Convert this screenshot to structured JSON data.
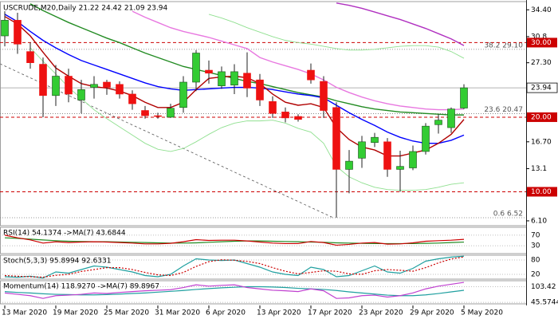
{
  "chart_data": [
    {
      "type": "candlestick",
      "title": "USCRUDE,M20,Daily  21.22 24.42 21.09 23.94",
      "x": [
        "13 Mar 2020",
        null,
        null,
        null,
        "19 Mar 2020",
        null,
        null,
        null,
        "25 Mar 2020",
        null,
        null,
        null,
        "31 Mar 2020",
        null,
        null,
        null,
        "6 Apr 2020",
        null,
        null,
        null,
        "13 Apr 2020",
        null,
        null,
        null,
        "17 Apr 2020",
        null,
        null,
        null,
        "23 Apr 2020",
        null,
        null,
        null,
        "29 Apr 2020",
        null,
        null,
        null,
        "5 May 2020"
      ],
      "open": [
        30.9,
        33.0,
        28.8,
        27.1,
        22.9,
        25.5,
        22.3,
        24.0,
        24.7,
        24.4,
        23.1,
        20.9,
        20.2,
        20.0,
        21.3,
        24.7,
        26.3,
        24.2,
        24.3,
        25.9,
        25.0,
        22.1,
        20.7,
        20.1,
        26.3,
        24.8,
        21.3,
        13.0,
        14.5,
        16.6,
        16.7,
        13.0,
        13.2,
        15.4,
        19.0,
        18.6,
        21.22
      ],
      "high": [
        34.2,
        34.0,
        30.0,
        28.0,
        27.0,
        26.5,
        25.0,
        25.5,
        25.0,
        24.8,
        23.6,
        21.5,
        20.6,
        21.8,
        25.5,
        29.0,
        27.6,
        26.8,
        27.1,
        28.7,
        25.8,
        22.8,
        21.3,
        20.4,
        27.2,
        25.5,
        22.0,
        15.6,
        17.5,
        17.9,
        17.2,
        15.5,
        16.2,
        19.2,
        20.4,
        21.3,
        24.42
      ],
      "low": [
        29.5,
        28.5,
        26.5,
        20.0,
        21.5,
        22.0,
        20.5,
        22.5,
        23.0,
        22.5,
        21.0,
        19.8,
        19.8,
        19.9,
        20.6,
        23.5,
        24.5,
        23.8,
        23.1,
        22.7,
        21.5,
        19.9,
        19.3,
        19.4,
        24.5,
        19.9,
        6.52,
        9.8,
        13.2,
        16.0,
        12.0,
        10.0,
        12.9,
        15.0,
        17.8,
        17.9,
        21.09
      ],
      "close": [
        33.0,
        29.8,
        27.3,
        22.9,
        25.5,
        23.1,
        23.7,
        24.4,
        24.0,
        23.1,
        21.8,
        20.2,
        20.1,
        21.2,
        24.7,
        28.6,
        25.9,
        26.1,
        26.1,
        23.9,
        22.3,
        20.5,
        19.9,
        19.7,
        25.0,
        20.9,
        13.0,
        14.1,
        16.7,
        17.3,
        13.0,
        13.4,
        15.4,
        18.8,
        19.6,
        21.1,
        23.94
      ],
      "up_color": "#33cc33",
      "down_color": "#ee1111",
      "ylim": [
        5.45,
        35.5
      ],
      "yticks": [
        {
          "value": 34.4,
          "label": "34.40"
        },
        30.8,
        {
          "value": 27.3,
          "label": "27.30"
        },
        {
          "value": 16.7,
          "label": "16.70"
        },
        13.1,
        {
          "value": 6.1,
          "label": "6.10"
        }
      ],
      "overlays": [
        {
          "color": "#90e090",
          "values": [
            null,
            null,
            null,
            null,
            null,
            null,
            null,
            null,
            null,
            null,
            null,
            null,
            null,
            null,
            null,
            null,
            33.8,
            33.3,
            32.7,
            32.0,
            31.4,
            30.8,
            30.3,
            30.0,
            29.8,
            29.5,
            29.2,
            29.0,
            29.0,
            29.1,
            29.3,
            29.5,
            29.6,
            29.6,
            29.4,
            28.8,
            27.9
          ]
        },
        {
          "color": "#90e090",
          "values": [
            null,
            null,
            29.3,
            27.5,
            25.8,
            24.0,
            22.5,
            21.0,
            19.8,
            18.7,
            17.6,
            16.5,
            15.7,
            15.4,
            15.8,
            16.7,
            17.7,
            18.6,
            19.2,
            19.5,
            19.5,
            19.6,
            19.2,
            18.5,
            18.0,
            16.5,
            13.4,
            12.0,
            11.2,
            10.6,
            10.3,
            10.2,
            10.2,
            10.3,
            10.6,
            11.0,
            11.2
          ]
        },
        {
          "color": "#b030c0",
          "values": [
            null,
            null,
            null,
            null,
            null,
            null,
            null,
            null,
            null,
            null,
            null,
            null,
            null,
            null,
            null,
            null,
            null,
            null,
            null,
            null,
            null,
            null,
            null,
            null,
            null,
            null,
            35.3,
            35.0,
            34.6,
            34.1,
            33.6,
            33.1,
            32.5,
            31.9,
            31.2,
            30.5,
            29.6
          ]
        },
        {
          "color": "#e878e0",
          "values": [
            null,
            null,
            null,
            null,
            null,
            null,
            null,
            null,
            null,
            null,
            34.2,
            33.4,
            32.7,
            32.0,
            31.5,
            31.1,
            30.7,
            30.2,
            29.7,
            29.2,
            28.0,
            27.4,
            26.9,
            26.4,
            25.8,
            25.0,
            24.0,
            23.3,
            22.7,
            22.2,
            21.8,
            21.5,
            21.3,
            21.1,
            21.0,
            21.0,
            21.1
          ]
        },
        {
          "color": "#228b22",
          "values": [
            null,
            null,
            35.2,
            34.3,
            33.5,
            32.7,
            32.0,
            31.3,
            30.6,
            30.0,
            29.3,
            28.6,
            28.0,
            27.4,
            26.8,
            26.4,
            26.0,
            25.6,
            25.2,
            24.8,
            24.5,
            24.1,
            23.7,
            23.3,
            23.0,
            22.7,
            22.2,
            21.8,
            21.4,
            21.1,
            20.9,
            20.7,
            20.6,
            20.5,
            20.4,
            20.3,
            20.3
          ]
        },
        {
          "color": "#0000ff",
          "values": [
            33.8,
            32.8,
            31.5,
            30.3,
            29.3,
            28.4,
            27.6,
            27.0,
            26.4,
            25.8,
            25.2,
            24.6,
            24.1,
            23.8,
            23.6,
            23.7,
            23.8,
            23.9,
            24.0,
            24.0,
            23.9,
            23.7,
            23.4,
            23.1,
            22.9,
            22.6,
            21.6,
            20.6,
            19.7,
            18.9,
            18.0,
            17.3,
            16.8,
            16.5,
            16.5,
            16.9,
            17.6
          ]
        },
        {
          "color": "#b00000",
          "values": [
            33.5,
            32.5,
            30.9,
            28.7,
            26.6,
            25.5,
            24.5,
            24.1,
            23.9,
            23.5,
            22.9,
            22.0,
            21.3,
            21.3,
            22.0,
            23.7,
            25.2,
            25.4,
            25.5,
            25.3,
            24.5,
            23.1,
            22.0,
            21.6,
            21.8,
            21.3,
            18.6,
            17.0,
            16.0,
            15.6,
            14.8,
            14.8,
            15.2,
            15.6,
            16.5,
            17.7,
            19.7
          ]
        }
      ],
      "levels": [
        {
          "value": 30,
          "label": "30.00"
        },
        {
          "value": 20,
          "label": "20.00"
        },
        {
          "value": 10,
          "label": "10.00"
        }
      ],
      "level_color": "#cc0000",
      "fib_levels": [
        {
          "value": 29.1,
          "label": "38.2 29.10"
        },
        {
          "value": 20.47,
          "label": "23.6 20.47"
        },
        {
          "value": 6.52,
          "label": "0.6 6.52"
        }
      ],
      "last_price": 23.94
    },
    {
      "type": "line",
      "title": "RSI(14) 54.1374 ->MA(7) 43.6844",
      "ylim": [
        0,
        100
      ],
      "yticks": [
        30,
        70
      ],
      "series": [
        {
          "color": "#228b22",
          "values": [
            60,
            58,
            55,
            52,
            49,
            47,
            46,
            45,
            45,
            44,
            43,
            42,
            41,
            40,
            40,
            41,
            43,
            45,
            47,
            48,
            48,
            47,
            46,
            45,
            44,
            43,
            41,
            40,
            39,
            38,
            38,
            38,
            38,
            39,
            40,
            42,
            43.6844
          ]
        },
        {
          "color": "#cc0000",
          "values": [
            70,
            60,
            52,
            40,
            45,
            42,
            44,
            45,
            44,
            42,
            40,
            37,
            37,
            39,
            45,
            53,
            50,
            51,
            51,
            48,
            44,
            40,
            38,
            38,
            46,
            42,
            32,
            35,
            40,
            42,
            36,
            37,
            41,
            47,
            49,
            51,
            54.1374
          ]
        }
      ]
    },
    {
      "type": "line",
      "title": "Stoch(5,3,3) 95.8994 92.6331",
      "ylim": [
        0,
        100
      ],
      "yticks": [
        20,
        80
      ],
      "series": [
        {
          "color": "#20a0a0",
          "values": [
            10,
            8,
            12,
            5,
            30,
            25,
            40,
            55,
            50,
            40,
            30,
            15,
            10,
            20,
            55,
            85,
            80,
            78,
            80,
            65,
            50,
            30,
            20,
            15,
            50,
            40,
            10,
            15,
            35,
            55,
            30,
            25,
            45,
            75,
            85,
            92,
            95.8994
          ]
        },
        {
          "color": "#cc0000",
          "dash": true,
          "values": [
            15,
            12,
            10,
            8,
            16,
            20,
            32,
            40,
            48,
            48,
            40,
            28,
            18,
            15,
            28,
            53,
            73,
            81,
            79,
            74,
            65,
            48,
            33,
            22,
            28,
            35,
            33,
            22,
            20,
            35,
            40,
            37,
            33,
            48,
            68,
            84,
            92.6331
          ]
        }
      ]
    },
    {
      "type": "line",
      "title": "Momentum(14) 118.9270 ->MA(7) 89.8967",
      "ylim": [
        40,
        125
      ],
      "yticks": [
        45.5744,
        103.42
      ],
      "series": [
        {
          "color": "#20a0a0",
          "values": [
            85,
            82,
            80,
            77,
            75,
            74,
            73,
            73,
            74,
            76,
            78,
            80,
            83,
            86,
            89,
            93,
            96,
            99,
            101,
            103,
            103,
            102,
            100,
            97,
            95,
            93,
            89,
            84,
            80,
            76,
            72,
            70,
            70,
            73,
            78,
            84,
            89.8967
          ]
        },
        {
          "color": "#c040d0",
          "values": [
            80,
            75,
            70,
            60,
            70,
            72,
            75,
            80,
            78,
            82,
            85,
            88,
            90,
            92,
            100,
            110,
            105,
            108,
            110,
            100,
            95,
            90,
            88,
            85,
            95,
            88,
            60,
            62,
            70,
            72,
            65,
            70,
            80,
            95,
            105,
            112,
            118.927
          ]
        }
      ]
    }
  ]
}
